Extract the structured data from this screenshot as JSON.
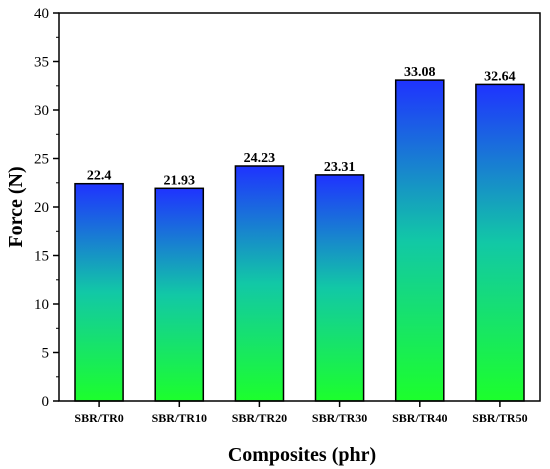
{
  "chart_data": {
    "type": "bar",
    "title": "",
    "xlabel": "Composites (phr)",
    "ylabel": "Force (N)",
    "categories": [
      "SBR/TR0",
      "SBR/TR10",
      "SBR/TR20",
      "SBR/TR30",
      "SBR/TR40",
      "SBR/TR50"
    ],
    "values": [
      22.4,
      21.93,
      24.23,
      23.31,
      33.08,
      32.64
    ],
    "data_labels": [
      "22.4",
      "21.93",
      "24.23",
      "23.31",
      "33.08",
      "32.64"
    ],
    "ylim": [
      0,
      40
    ],
    "yticks": [
      0,
      5,
      10,
      15,
      20,
      25,
      30,
      35,
      40
    ],
    "ytick_labels": [
      "0",
      "5",
      "10",
      "15",
      "20",
      "25",
      "30",
      "35",
      "40"
    ],
    "grid": false,
    "legend": "none",
    "bar_gradient": {
      "top": "#1f33ff",
      "middle": "#12c8a6",
      "bottom": "#1cff2c"
    },
    "bar_border_color": "#000000"
  }
}
